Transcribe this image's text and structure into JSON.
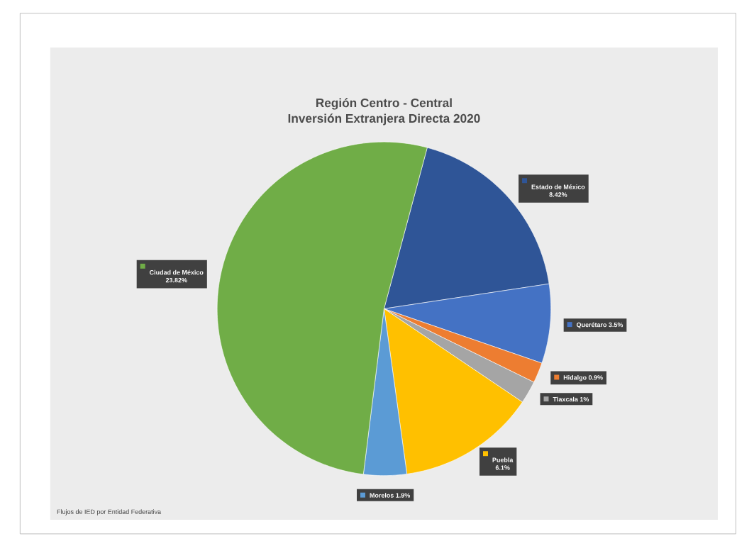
{
  "chart_data": {
    "type": "pie",
    "title": "Región Centro - Central",
    "subtitle": "Inversión Extranjera Directa 2020",
    "categories": [
      "Estado de México",
      "Querétaro",
      "Hidalgo",
      "Tlaxcala",
      "Puebla",
      "Morelos",
      "Ciudad de México"
    ],
    "values": [
      8.42,
      3.5,
      0.9,
      1,
      6.1,
      1.9,
      23.82
    ],
    "value_labels": [
      "8.42%",
      "3.5%",
      "0.9%",
      "1%",
      "6.1%",
      "1.9%",
      "23.82%"
    ],
    "colors": [
      "#2f5597",
      "#4472c4",
      "#ed7d31",
      "#a5a5a5",
      "#ffc000",
      "#5b9bd5",
      "#70ad47"
    ],
    "legend": "right",
    "annotations": [
      "Flujos de IED por Entidad Federativa"
    ]
  }
}
